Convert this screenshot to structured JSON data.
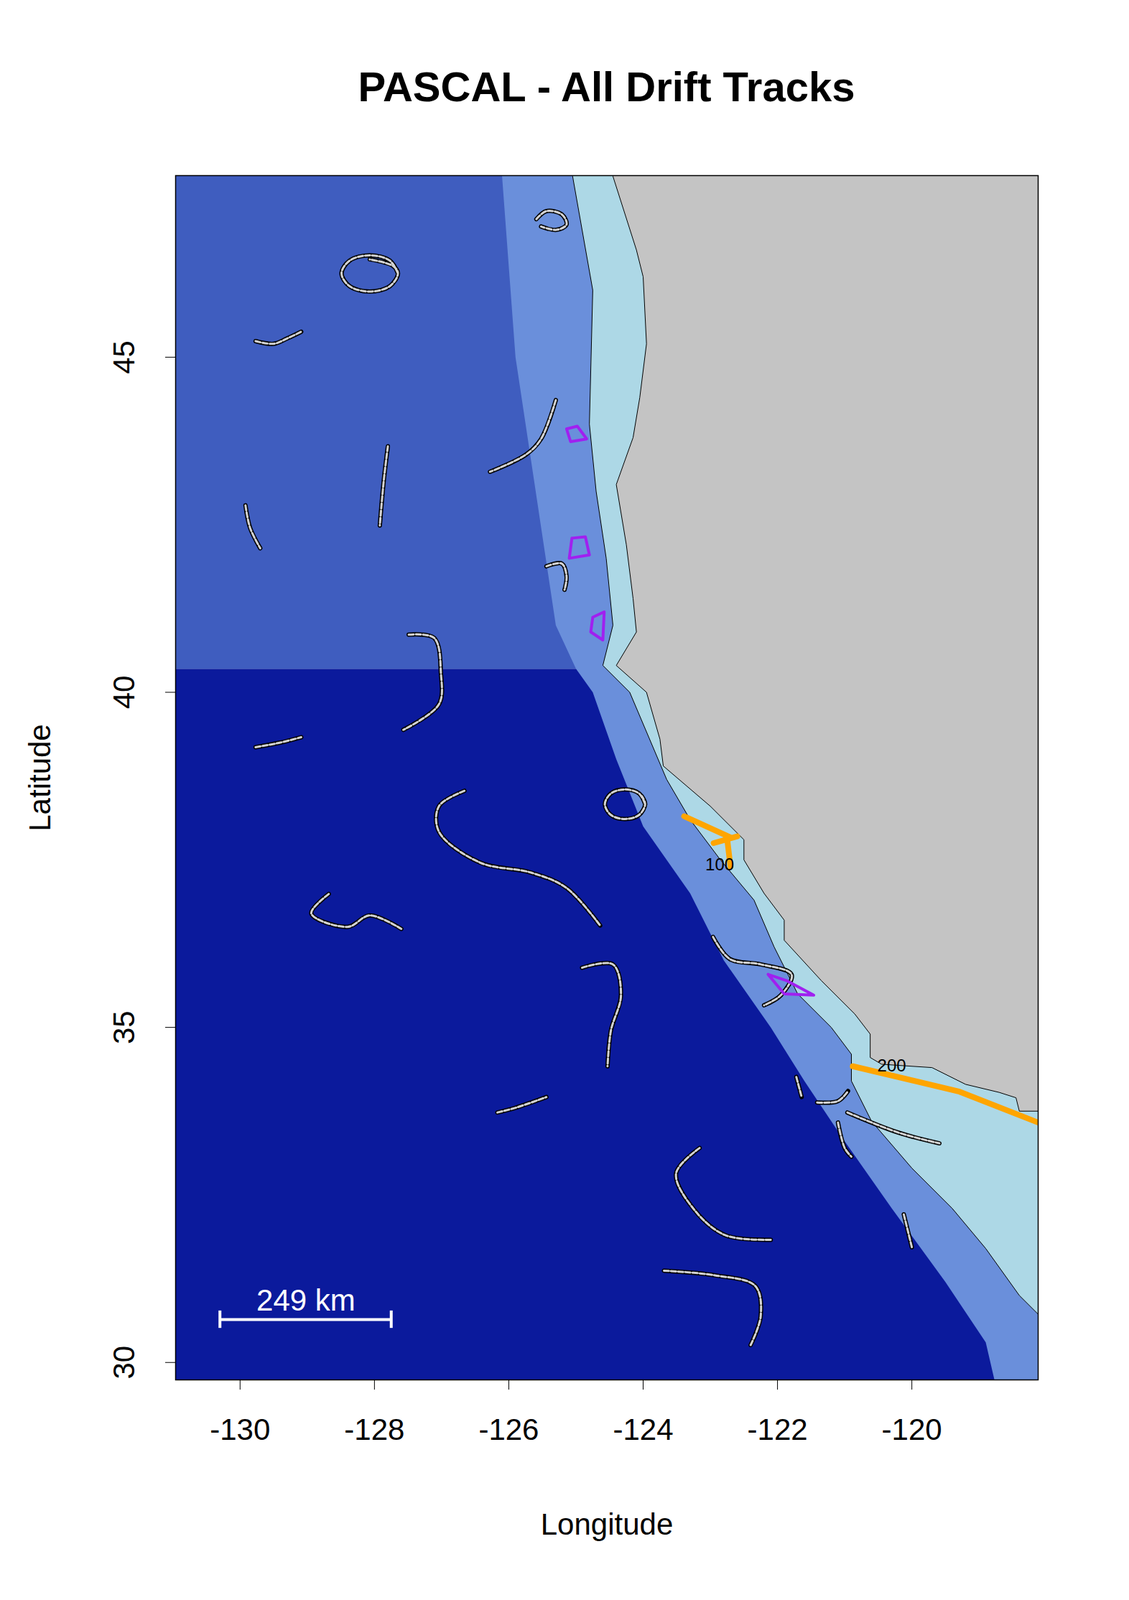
{
  "chart_data": {
    "type": "map",
    "title": "PASCAL - All Drift Tracks",
    "x_label": "Longitude",
    "y_label": "Latitude",
    "xlim": [
      -130.96,
      -118.12
    ],
    "ylim": [
      29.74,
      47.71
    ],
    "xticks": [
      -130,
      -128,
      -126,
      -124,
      -122,
      -120
    ],
    "yticks": [
      30,
      35,
      40,
      45
    ],
    "regions": [
      {
        "color": "#0b1a9c",
        "coordinates": [
          [
            -131.5,
            29
          ],
          [
            -117.5,
            29
          ],
          [
            -117.5,
            40.35
          ],
          [
            -131.5,
            40.35
          ]
        ]
      },
      {
        "color": "#3f5dbf",
        "coordinates": [
          [
            -131.5,
            40.35
          ],
          [
            -117.5,
            40.35
          ],
          [
            -117.5,
            48
          ],
          [
            -131.5,
            48
          ]
        ]
      },
      {
        "color": "#6a8fdb",
        "coordinates": [
          [
            -126.2,
            48
          ],
          [
            -126.1,
            47.7
          ],
          [
            -125.9,
            45
          ],
          [
            -125.6,
            43
          ],
          [
            -125.3,
            41
          ],
          [
            -125.0,
            40.35
          ],
          [
            -124.75,
            40
          ],
          [
            -124.4,
            39
          ],
          [
            -124.0,
            38
          ],
          [
            -123.3,
            37
          ],
          [
            -122.8,
            36
          ],
          [
            -122.1,
            35
          ],
          [
            -121.6,
            34.2
          ],
          [
            -121.0,
            33.3
          ],
          [
            -120.3,
            32.3
          ],
          [
            -119.5,
            31.2
          ],
          [
            -118.9,
            30.3
          ],
          [
            -118.6,
            29
          ],
          [
            -117.5,
            29
          ],
          [
            -117.5,
            48
          ]
        ]
      },
      {
        "color": "#add8e6",
        "stroke": "#000000",
        "coordinates": [
          [
            -125.1,
            48
          ],
          [
            -125.05,
            47.7
          ],
          [
            -124.75,
            46
          ],
          [
            -124.8,
            44
          ],
          [
            -124.7,
            43
          ],
          [
            -124.55,
            42
          ],
          [
            -124.45,
            41
          ],
          [
            -124.6,
            40.4
          ],
          [
            -124.2,
            40
          ],
          [
            -123.65,
            38.7
          ],
          [
            -123.3,
            38.1
          ],
          [
            -122.85,
            37.5
          ],
          [
            -122.35,
            36.9
          ],
          [
            -122.05,
            36.2
          ],
          [
            -121.7,
            35.5
          ],
          [
            -121.2,
            35
          ],
          [
            -120.9,
            34.6
          ],
          [
            -120.9,
            34.2
          ],
          [
            -120.6,
            33.6
          ],
          [
            -120.0,
            32.9
          ],
          [
            -119.4,
            32.3
          ],
          [
            -118.9,
            31.7
          ],
          [
            -118.4,
            31.0
          ],
          [
            -118.1,
            30.7
          ],
          [
            -117.5,
            30.4
          ],
          [
            -117.5,
            48
          ]
        ]
      },
      {
        "color": "#c4c4c4",
        "stroke": "#000000",
        "coordinates": [
          [
            -124.7,
            48
          ],
          [
            -124.45,
            47.7
          ],
          [
            -124.1,
            46.6
          ],
          [
            -124.0,
            46.2
          ],
          [
            -123.95,
            45.2
          ],
          [
            -124.05,
            44.4
          ],
          [
            -124.15,
            43.8
          ],
          [
            -124.4,
            43.1
          ],
          [
            -124.25,
            42.2
          ],
          [
            -124.15,
            41.4
          ],
          [
            -124.1,
            40.9
          ],
          [
            -124.4,
            40.4
          ],
          [
            -123.95,
            40.0
          ],
          [
            -123.75,
            39.3
          ],
          [
            -123.7,
            38.9
          ],
          [
            -123.0,
            38.3
          ],
          [
            -122.5,
            37.8
          ],
          [
            -122.5,
            37.5
          ],
          [
            -122.2,
            37.0
          ],
          [
            -121.9,
            36.6
          ],
          [
            -121.9,
            36.3
          ],
          [
            -121.35,
            35.7
          ],
          [
            -120.85,
            35.2
          ],
          [
            -120.62,
            34.9
          ],
          [
            -120.62,
            34.55
          ],
          [
            -120.45,
            34.45
          ],
          [
            -119.7,
            34.4
          ],
          [
            -119.2,
            34.15
          ],
          [
            -118.7,
            34.03
          ],
          [
            -118.45,
            33.95
          ],
          [
            -118.4,
            33.75
          ],
          [
            -118.1,
            33.75
          ],
          [
            -117.5,
            33.3
          ],
          [
            -117.5,
            48
          ]
        ]
      }
    ],
    "tracks": {
      "color": "#d3d3d3",
      "lines": [
        [
          [
            -125.59,
            47.06
          ],
          [
            -125.44,
            47.18
          ],
          [
            -125.21,
            47.13
          ],
          [
            -125.14,
            46.98
          ],
          [
            -125.29,
            46.9
          ],
          [
            -125.52,
            46.95
          ]
        ],
        [
          [
            -127.65,
            46.25
          ],
          [
            -127.77,
            46.44
          ],
          [
            -128.07,
            46.52
          ],
          [
            -128.37,
            46.44
          ],
          [
            -128.49,
            46.25
          ],
          [
            -128.37,
            46.06
          ],
          [
            -128.07,
            45.98
          ],
          [
            -127.77,
            46.06
          ],
          [
            -127.65,
            46.25
          ],
          [
            -127.72,
            46.36
          ],
          [
            -128.07,
            46.46
          ]
        ],
        [
          [
            -129.77,
            45.24
          ],
          [
            -129.5,
            45.2
          ],
          [
            -129.3,
            45.28
          ],
          [
            -129.09,
            45.38
          ]
        ],
        [
          [
            -125.3,
            44.36
          ],
          [
            -125.52,
            43.78
          ],
          [
            -125.74,
            43.55
          ],
          [
            -126.28,
            43.29
          ]
        ],
        [
          [
            -127.8,
            43.67
          ],
          [
            -127.86,
            43.17
          ],
          [
            -127.92,
            42.49
          ]
        ],
        [
          [
            -129.92,
            42.79
          ],
          [
            -129.85,
            42.45
          ],
          [
            -129.7,
            42.15
          ]
        ],
        [
          [
            -125.44,
            41.88
          ],
          [
            -125.21,
            41.92
          ],
          [
            -125.14,
            41.73
          ],
          [
            -125.17,
            41.53
          ]
        ],
        [
          [
            -127.49,
            40.86
          ],
          [
            -127.11,
            40.81
          ],
          [
            -127.01,
            40.28
          ],
          [
            -127.04,
            39.82
          ],
          [
            -127.57,
            39.44
          ]
        ],
        [
          [
            -129.77,
            39.18
          ],
          [
            -129.4,
            39.25
          ],
          [
            -129.09,
            39.33
          ]
        ],
        [
          [
            -123.97,
            38.33
          ],
          [
            -124.06,
            38.49
          ],
          [
            -124.27,
            38.55
          ],
          [
            -124.48,
            38.49
          ],
          [
            -124.57,
            38.33
          ],
          [
            -124.48,
            38.17
          ],
          [
            -124.27,
            38.11
          ],
          [
            -124.06,
            38.17
          ],
          [
            -123.97,
            38.33
          ],
          [
            -124.02,
            38.45
          ]
        ],
        [
          [
            -126.66,
            38.53
          ],
          [
            -127.04,
            38.3
          ],
          [
            -127.04,
            37.92
          ],
          [
            -126.43,
            37.46
          ],
          [
            -125.67,
            37.31
          ],
          [
            -125.14,
            37.08
          ],
          [
            -124.64,
            36.52
          ]
        ],
        [
          [
            -128.68,
            36.99
          ],
          [
            -128.94,
            36.7
          ],
          [
            -128.4,
            36.5
          ],
          [
            -128.07,
            36.67
          ],
          [
            -127.6,
            36.47
          ]
        ],
        [
          [
            -124.91,
            35.89
          ],
          [
            -124.45,
            35.94
          ],
          [
            -124.33,
            35.48
          ],
          [
            -124.48,
            34.95
          ],
          [
            -124.53,
            34.42
          ]
        ],
        [
          [
            -122.96,
            36.35
          ],
          [
            -122.71,
            36.02
          ],
          [
            -122.25,
            35.94
          ],
          [
            -121.79,
            35.79
          ],
          [
            -121.95,
            35.48
          ],
          [
            -122.2,
            35.33
          ]
        ],
        [
          [
            -126.17,
            33.73
          ],
          [
            -125.9,
            33.8
          ],
          [
            -125.44,
            33.96
          ]
        ],
        [
          [
            -121.72,
            34.26
          ],
          [
            -121.64,
            33.96
          ]
        ],
        [
          [
            -121.41,
            33.88
          ],
          [
            -121.1,
            33.9
          ],
          [
            -120.95,
            34.05
          ]
        ],
        [
          [
            -120.96,
            33.73
          ],
          [
            -120.2,
            33.43
          ],
          [
            -119.59,
            33.27
          ]
        ],
        [
          [
            -121.1,
            33.58
          ],
          [
            -121.0,
            33.2
          ],
          [
            -120.9,
            33.07
          ]
        ],
        [
          [
            -120.12,
            32.21
          ],
          [
            -120.0,
            31.72
          ]
        ],
        [
          [
            -123.16,
            33.2
          ],
          [
            -123.51,
            32.82
          ],
          [
            -123.24,
            32.28
          ],
          [
            -122.78,
            31.9
          ],
          [
            -122.1,
            31.83
          ]
        ],
        [
          [
            -123.69,
            31.37
          ],
          [
            -122.93,
            31.3
          ],
          [
            -122.33,
            31.14
          ],
          [
            -122.25,
            30.69
          ],
          [
            -122.4,
            30.26
          ]
        ]
      ]
    },
    "polygons": {
      "color": "#a020f0",
      "shapes": [
        [
          [
            -125.14,
            43.93
          ],
          [
            -124.98,
            43.97
          ],
          [
            -124.84,
            43.78
          ],
          [
            -125.08,
            43.74
          ],
          [
            -125.14,
            43.93
          ]
        ],
        [
          [
            -125.06,
            42.3
          ],
          [
            -124.86,
            42.32
          ],
          [
            -124.8,
            42.05
          ],
          [
            -125.1,
            42.0
          ],
          [
            -125.06,
            42.3
          ]
        ],
        [
          [
            -124.75,
            41.12
          ],
          [
            -124.58,
            41.2
          ],
          [
            -124.6,
            40.78
          ],
          [
            -124.78,
            40.9
          ],
          [
            -124.75,
            41.12
          ]
        ],
        [
          [
            -122.14,
            35.79
          ],
          [
            -121.87,
            35.7
          ],
          [
            -121.46,
            35.48
          ],
          [
            -121.9,
            35.5
          ],
          [
            -122.14,
            35.79
          ]
        ]
      ]
    },
    "lines": {
      "color": "#ffa500",
      "paths": [
        [
          [
            -123.39,
            38.15
          ],
          [
            -122.71,
            37.84
          ]
        ],
        [
          [
            -122.95,
            37.75
          ],
          [
            -122.6,
            37.85
          ]
        ],
        [
          [
            -122.75,
            37.82
          ],
          [
            -122.7,
            37.4
          ]
        ],
        [
          [
            -120.88,
            34.42
          ],
          [
            -119.29,
            34.04
          ],
          [
            -118.12,
            33.58
          ]
        ]
      ]
    },
    "annotations": [
      {
        "text": "200",
        "at": [
          -120.3,
          34.42
        ]
      },
      {
        "text": "100",
        "at": [
          -122.86,
          37.42
        ]
      }
    ],
    "scale_bar": {
      "label": "249 km",
      "from": [
        -130.3,
        30.64
      ],
      "to": [
        -127.75,
        30.64
      ],
      "label_at": [
        -129.02,
        30.92
      ],
      "color": "#ffffff"
    }
  }
}
